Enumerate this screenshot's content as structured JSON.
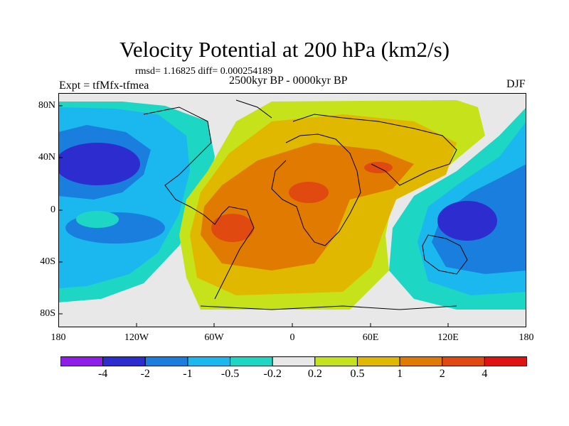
{
  "title": "Velocity Potential at 200 hPa (km2/s)",
  "stats": "rmsd= 1.16825 diff= 0.000254189",
  "left_label": "Expt = tfMfx-tfmea",
  "center_label": "2500kyr BP - 0000kyr BP",
  "right_label": "DJF",
  "lat_ticks": [
    "80N",
    "40N",
    "0",
    "40S",
    "80S"
  ],
  "lon_ticks": [
    "180",
    "120W",
    "60W",
    "0",
    "60E",
    "120E",
    "180"
  ],
  "colorbar": {
    "labels": [
      "-4",
      "-2",
      "-1",
      "-0.5",
      "-0.2",
      "0.2",
      "0.5",
      "1",
      "2",
      "4"
    ],
    "colors": [
      "#8f1fe8",
      "#2c2ccf",
      "#1a7ede",
      "#1ab8ef",
      "#1ed6c4",
      "#e8e8e8",
      "#c6e21a",
      "#e0b800",
      "#e07a00",
      "#e04a10",
      "#e01212"
    ]
  },
  "chart_data": {
    "type": "contour-map",
    "variable": "Velocity Potential at 200 hPa",
    "units": "km2/s",
    "season": "DJF",
    "comparison": "2500kyr BP - 0000kyr BP",
    "levels": [
      -4,
      -2,
      -1,
      -0.5,
      -0.2,
      0.2,
      0.5,
      1,
      2,
      4
    ],
    "lon_range": [
      -180,
      180
    ],
    "lat_range": [
      -90,
      90
    ]
  }
}
